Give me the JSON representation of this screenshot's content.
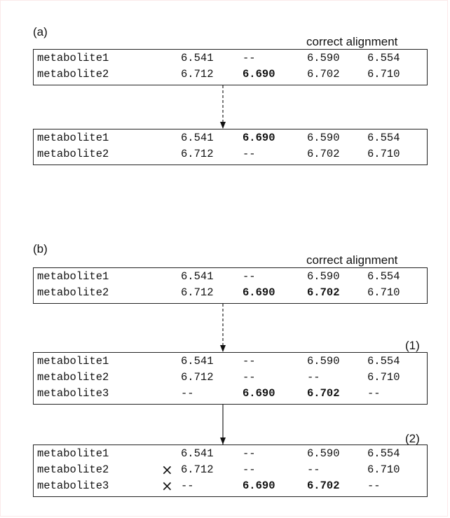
{
  "panel_a": {
    "label": "(a)",
    "caption": "correct alignment",
    "top_rows": [
      {
        "name": "metabolite1",
        "cells": [
          "6.541",
          "--",
          "6.590",
          "6.554"
        ],
        "bold": [
          false,
          false,
          false,
          false
        ]
      },
      {
        "name": "metabolite2",
        "cells": [
          "6.712",
          "6.690",
          "6.702",
          "6.710"
        ],
        "bold": [
          false,
          true,
          false,
          false
        ]
      }
    ],
    "bottom_rows": [
      {
        "name": "metabolite1",
        "cells": [
          "6.541",
          "6.690",
          "6.590",
          "6.554"
        ],
        "bold": [
          false,
          true,
          false,
          false
        ]
      },
      {
        "name": "metabolite2",
        "cells": [
          "6.712",
          "--",
          "6.702",
          "6.710"
        ],
        "bold": [
          false,
          false,
          false,
          false
        ]
      }
    ]
  },
  "panel_b": {
    "label": "(b)",
    "caption": "correct alignment",
    "step1_label": "(1)",
    "step2_label": "(2)",
    "top_rows": [
      {
        "name": "metabolite1",
        "cells": [
          "6.541",
          "--",
          "6.590",
          "6.554"
        ],
        "bold": [
          false,
          false,
          false,
          false
        ]
      },
      {
        "name": "metabolite2",
        "cells": [
          "6.712",
          "6.690",
          "6.702",
          "6.710"
        ],
        "bold": [
          false,
          true,
          true,
          false
        ]
      }
    ],
    "step1_rows": [
      {
        "name": "metabolite1",
        "cells": [
          "6.541",
          "--",
          "6.590",
          "6.554"
        ],
        "bold": [
          false,
          false,
          false,
          false
        ]
      },
      {
        "name": "metabolite2",
        "cells": [
          "6.712",
          "--",
          "--",
          "6.710"
        ],
        "bold": [
          false,
          false,
          false,
          false
        ]
      },
      {
        "name": "metabolite3",
        "cells": [
          "--",
          "6.690",
          "6.702",
          "--"
        ],
        "bold": [
          false,
          true,
          true,
          false
        ]
      }
    ],
    "step2_rows": [
      {
        "name": "metabolite1",
        "cells": [
          "6.541",
          "--",
          "6.590",
          "6.554"
        ],
        "bold": [
          false,
          false,
          false,
          false
        ],
        "marked": false
      },
      {
        "name": "metabolite2",
        "cells": [
          "6.712",
          "--",
          "--",
          "6.710"
        ],
        "bold": [
          false,
          false,
          false,
          false
        ],
        "marked": true
      },
      {
        "name": "metabolite3",
        "cells": [
          "--",
          "6.690",
          "6.702",
          "--"
        ],
        "bold": [
          false,
          true,
          true,
          false
        ],
        "marked": true
      }
    ],
    "cross_mark": "×"
  }
}
